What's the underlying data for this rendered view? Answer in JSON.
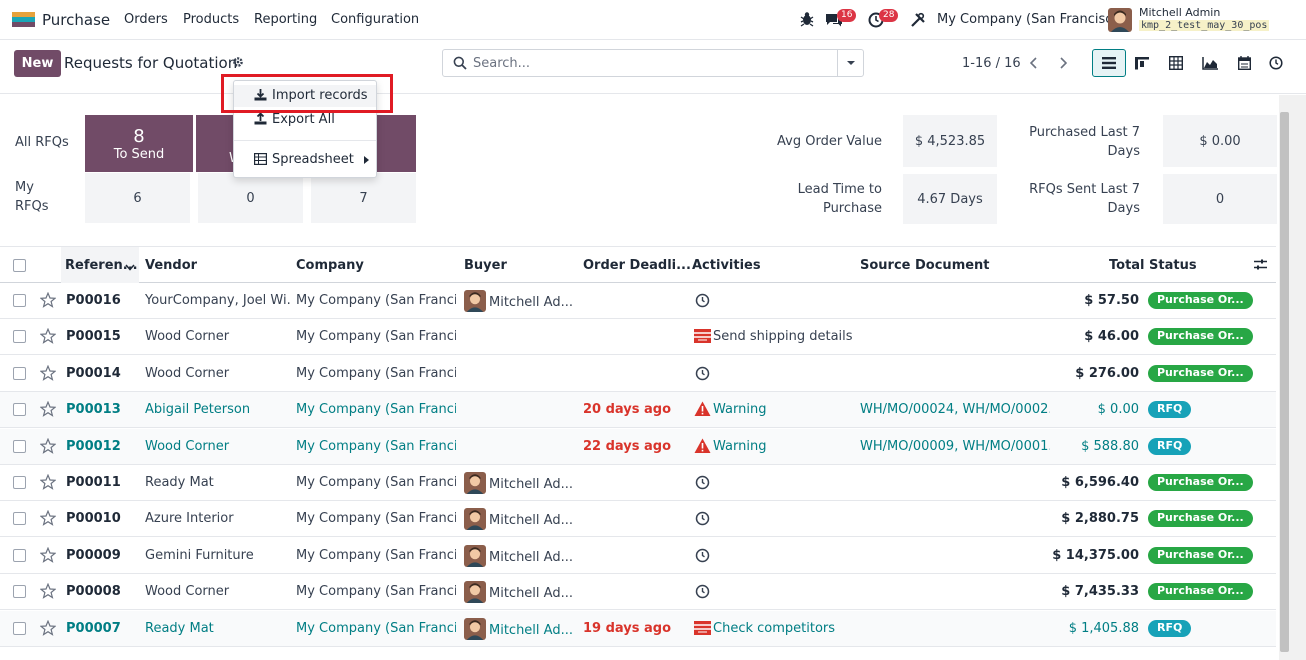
{
  "nav": {
    "app_name": "Purchase",
    "menus": [
      "Orders",
      "Products",
      "Reporting",
      "Configuration"
    ],
    "chat_badge": "16",
    "activity_badge": "28",
    "company": "My Company (San Francisco)",
    "user_name": "Mitchell Admin",
    "db_name": "kmp_2_test_may_30_pos"
  },
  "control": {
    "new_label": "New",
    "title": "Requests for Quotation",
    "search_placeholder": "Search...",
    "pager": "1-16 / 16"
  },
  "dropdown": {
    "import": "Import records",
    "export": "Export All",
    "spreadsheet": "Spreadsheet"
  },
  "dashboard": {
    "all_rfqs_label": "All RFQs",
    "my_rfqs_label_1": "My",
    "my_rfqs_label_2": "RFQs",
    "to_send_count": "8",
    "to_send_label": "To Send",
    "waiting_label_fragment": "W",
    "my_counts": [
      "6",
      "0",
      "7"
    ],
    "avg_order_label": "Avg Order Value",
    "avg_order_value": "$ 4,523.85",
    "purchased_label_1": "Purchased Last 7",
    "purchased_label_2": "Days",
    "purchased_value": "$ 0.00",
    "lead_time_label_1": "Lead Time to",
    "lead_time_label_2": "Purchase",
    "lead_time_value": "4.67 Days",
    "rfqs_sent_label_1": "RFQs Sent Last 7",
    "rfqs_sent_label_2": "Days",
    "rfqs_sent_value": "0"
  },
  "table": {
    "headers": {
      "reference": "Referen...",
      "vendor": "Vendor",
      "company": "Company",
      "buyer": "Buyer",
      "deadline": "Order Deadli...",
      "activities": "Activities",
      "source": "Source Document",
      "total": "Total",
      "status": "Status"
    },
    "rows": [
      {
        "ref": "P00016",
        "vendor": "YourCompany, Joel Wi...",
        "company": "My Company (San Francis...",
        "buyer": "Mitchell Ad...",
        "deadline": "",
        "activity": "",
        "activity_icon": "clock",
        "source": "",
        "total": "$ 57.50",
        "status": "Purchase Or...",
        "status_color": "#28a745",
        "style": "normal"
      },
      {
        "ref": "P00015",
        "vendor": "Wood Corner",
        "company": "My Company (San Francis...",
        "buyer": "",
        "deadline": "",
        "activity": "Send shipping details",
        "activity_icon": "email",
        "source": "",
        "total": "$ 46.00",
        "status": "Purchase Or...",
        "status_color": "#28a745",
        "style": "normal"
      },
      {
        "ref": "P00014",
        "vendor": "Wood Corner",
        "company": "My Company (San Francis...",
        "buyer": "",
        "deadline": "",
        "activity": "",
        "activity_icon": "clock",
        "source": "",
        "total": "$ 276.00",
        "status": "Purchase Or...",
        "status_color": "#28a745",
        "style": "normal"
      },
      {
        "ref": "P00013",
        "vendor": "Abigail Peterson",
        "company": "My Company (San Francis...",
        "buyer": "",
        "deadline": "20 days ago",
        "activity": "Warning",
        "activity_icon": "warning",
        "source": "WH/MO/00024, WH/MO/0002...",
        "total": "$ 0.00",
        "status": "RFQ",
        "status_color": "#17a2b8",
        "style": "teal"
      },
      {
        "ref": "P00012",
        "vendor": "Wood Corner",
        "company": "My Company (San Francis...",
        "buyer": "",
        "deadline": "22 days ago",
        "activity": "Warning",
        "activity_icon": "warning",
        "source": "WH/MO/00009, WH/MO/0001...",
        "total": "$ 588.80",
        "status": "RFQ",
        "status_color": "#17a2b8",
        "style": "teal"
      },
      {
        "ref": "P00011",
        "vendor": "Ready Mat",
        "company": "My Company (San Francis...",
        "buyer": "Mitchell Ad...",
        "deadline": "",
        "activity": "",
        "activity_icon": "clock",
        "source": "",
        "total": "$ 6,596.40",
        "status": "Purchase Or...",
        "status_color": "#28a745",
        "style": "normal"
      },
      {
        "ref": "P00010",
        "vendor": "Azure Interior",
        "company": "My Company (San Francis...",
        "buyer": "Mitchell Ad...",
        "deadline": "",
        "activity": "",
        "activity_icon": "clock",
        "source": "",
        "total": "$ 2,880.75",
        "status": "Purchase Or...",
        "status_color": "#28a745",
        "style": "normal"
      },
      {
        "ref": "P00009",
        "vendor": "Gemini Furniture",
        "company": "My Company (San Francis...",
        "buyer": "Mitchell Ad...",
        "deadline": "",
        "activity": "",
        "activity_icon": "clock",
        "source": "",
        "total": "$ 14,375.00",
        "status": "Purchase Or...",
        "status_color": "#28a745",
        "style": "normal"
      },
      {
        "ref": "P00008",
        "vendor": "Wood Corner",
        "company": "My Company (San Francis...",
        "buyer": "Mitchell Ad...",
        "deadline": "",
        "activity": "",
        "activity_icon": "clock",
        "source": "",
        "total": "$ 7,435.33",
        "status": "Purchase Or...",
        "status_color": "#28a745",
        "style": "normal"
      },
      {
        "ref": "P00007",
        "vendor": "Ready Mat",
        "company": "My Company (San Francis...",
        "buyer": "Mitchell Ad...",
        "deadline": "19 days ago",
        "activity": "Check competitors",
        "activity_icon": "email",
        "source": "",
        "total": "$ 1,405.88",
        "status": "RFQ",
        "status_color": "#17a2b8",
        "style": "teal"
      }
    ]
  },
  "colors": {
    "brand": "#714B67",
    "accent": "#017e84",
    "danger": "#d9342b",
    "success": "#28a745",
    "info": "#17a2b8"
  }
}
